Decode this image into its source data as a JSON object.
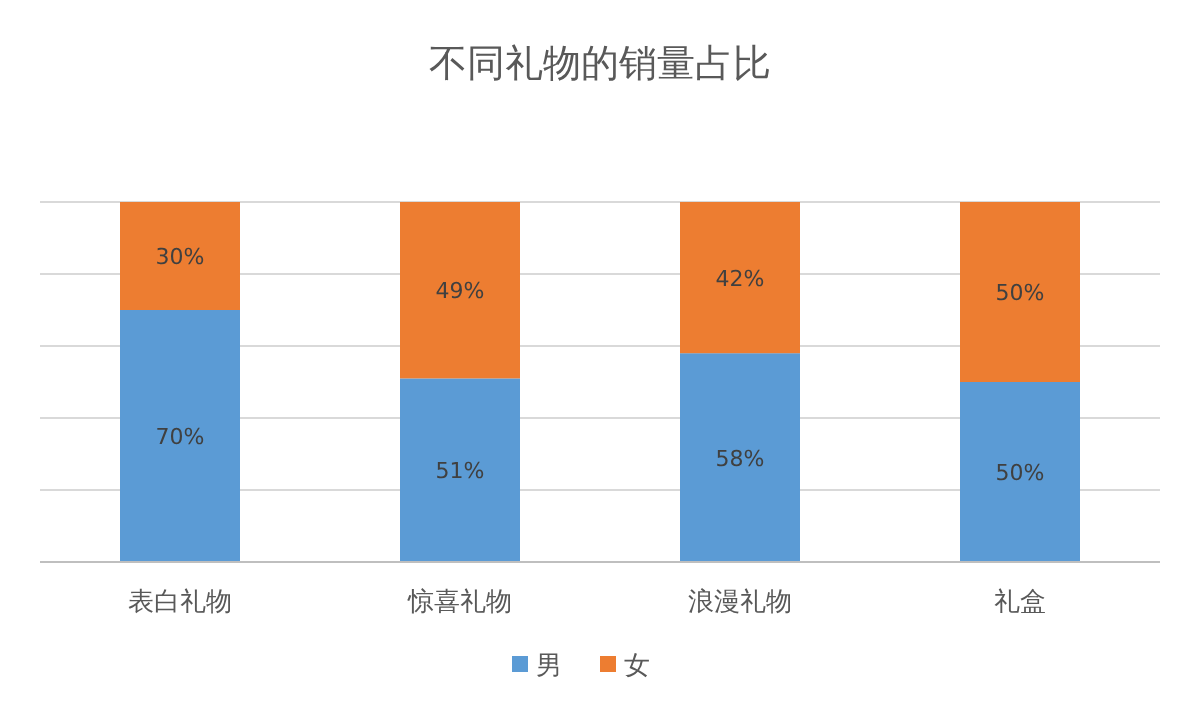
{
  "chart_data": {
    "type": "bar",
    "title": "不同礼物的销量占比",
    "categories": [
      "表白礼物",
      "惊喜礼物",
      "浪漫礼物",
      "礼盒"
    ],
    "stacked": true,
    "series": [
      {
        "name": "男",
        "color": "#5b9bd5",
        "values": [
          70,
          51,
          58,
          50
        ],
        "value_labels": [
          "70%",
          "51%",
          "58%",
          "50%"
        ]
      },
      {
        "name": "女",
        "color": "#ed7d31",
        "values": [
          30,
          49,
          42,
          50
        ],
        "value_labels": [
          "30%",
          "49%",
          "42%",
          "50%"
        ]
      }
    ],
    "ylim": [
      0,
      100
    ],
    "yticks": [
      {
        "value": 0,
        "label": null
      },
      {
        "value": 20,
        "label": null
      },
      {
        "value": 40,
        "label": null
      },
      {
        "value": 60,
        "label": null
      },
      {
        "value": 80,
        "label": null
      },
      {
        "value": 100,
        "label": null
      }
    ],
    "grid": "y",
    "legend": "bottom",
    "tick_labels": "x"
  }
}
